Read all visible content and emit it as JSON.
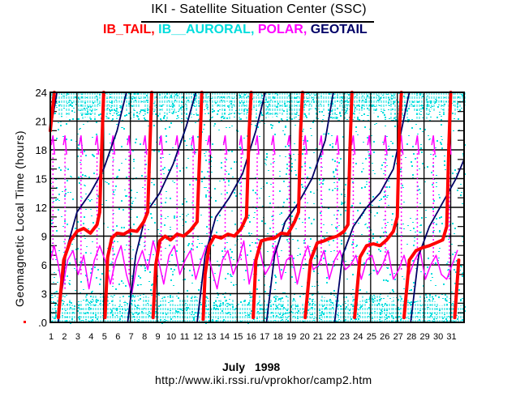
{
  "header": {
    "title": "IKI - Satellite Situation Center (SSC)"
  },
  "footer": {
    "month": "July",
    "year": "1998",
    "url": "http://www.iki.rssi.ru/vprokhor/camp2.htm"
  },
  "chart_data": {
    "type": "line",
    "title": "IKI - Satellite Situation Center (SSC)",
    "xlabel": "July 1998",
    "ylabel": "Geomagnetic Local Time (hours)",
    "xlim": [
      1,
      32
    ],
    "ylim": [
      0,
      24
    ],
    "grid": true,
    "legend_placement": "top",
    "x_ticks": [
      "1",
      "2",
      "3",
      "4",
      "5",
      "6",
      "7",
      "8",
      "9",
      "10",
      "11",
      "12",
      "13",
      "14",
      "15",
      "16",
      "17",
      "18",
      "19",
      "20",
      "21",
      "22",
      "23",
      "24",
      "25",
      "26",
      "27",
      "28",
      "29",
      "30",
      "31"
    ],
    "y_ticks": [
      ".0",
      "3",
      "6",
      "9",
      "12",
      "15",
      "18",
      "21",
      "24"
    ],
    "y_tick_values": [
      0,
      3,
      6,
      9,
      12,
      15,
      18,
      21,
      24
    ],
    "legend": [
      {
        "name": "IB_TAIL",
        "color": "#ff0000"
      },
      {
        "name": "IB__AURORAL",
        "color": "#00dddd"
      },
      {
        "name": "POLAR",
        "color": "#ff00ff"
      },
      {
        "name": "GEOTAIL",
        "color": "#000066"
      }
    ],
    "series": [
      {
        "name": "IB_TAIL",
        "color": "#ff0000",
        "description": "Sawtooth-like GMLT track; wraps 24->0 roughly every 3.75 days, plateau near 6-9 h with oscillation, then steep rise to 24",
        "x": [
          1.0,
          1.15,
          1.3,
          1.6,
          2.0,
          2.5,
          3.0,
          3.5,
          4.0,
          4.5,
          4.7,
          4.85,
          5.0,
          5.1,
          5.3,
          5.6,
          6.0,
          6.5,
          7.0,
          7.5,
          8.0,
          8.3,
          8.5,
          8.6,
          8.7,
          8.9,
          9.2,
          9.6,
          10.0,
          10.5,
          11.0,
          11.5,
          12.0,
          12.2,
          12.35,
          12.45,
          12.6,
          12.9,
          13.3,
          13.8,
          14.3,
          14.8,
          15.3,
          15.7,
          15.9,
          16.05,
          16.2,
          16.4,
          16.8,
          17.3,
          17.8,
          18.3,
          18.8,
          19.3,
          19.6,
          19.75,
          19.9,
          20.1,
          20.5,
          21.0,
          21.5,
          22.0,
          22.5,
          23.0,
          23.3,
          23.45,
          23.6,
          23.8,
          24.2,
          24.7,
          25.2,
          25.7,
          26.2,
          26.7,
          27.0,
          27.15,
          27.3,
          27.5,
          27.9,
          28.4,
          28.9,
          29.4,
          29.9,
          30.4,
          30.7,
          30.85,
          31.0,
          31.3,
          31.6
        ],
        "y": [
          20,
          22,
          24,
          0.5,
          6.5,
          8.5,
          9.5,
          9.8,
          9.3,
          10.2,
          11.5,
          18,
          24,
          0.5,
          6.8,
          8.8,
          9.3,
          9.2,
          9.6,
          9.5,
          10.5,
          11.5,
          20,
          24,
          0.5,
          6.0,
          8.5,
          9.0,
          8.6,
          9.2,
          9.0,
          9.6,
          10.5,
          18,
          24,
          0.3,
          5.0,
          8.0,
          9.0,
          8.8,
          9.2,
          9.0,
          9.8,
          11.0,
          20,
          24,
          0.5,
          6.5,
          8.5,
          8.7,
          8.8,
          9.3,
          9.2,
          10.5,
          11.5,
          20,
          24,
          0.5,
          6.5,
          8.3,
          8.5,
          8.8,
          9.0,
          9.5,
          10.2,
          18,
          24,
          0.5,
          6.8,
          8.0,
          8.2,
          8.0,
          8.6,
          9.5,
          11.0,
          20,
          24,
          0.5,
          6.5,
          7.5,
          7.8,
          8.0,
          8.3,
          8.6,
          10.0,
          18,
          24,
          0.5,
          6.5
        ]
      },
      {
        "name": "GEOTAIL",
        "color": "#000066",
        "description": "GMLT rises steadily 0->24 about every 5.2 days",
        "x": [
          1.0,
          1.5,
          1.6,
          2.2,
          3.0,
          4.0,
          5.0,
          6.0,
          6.7,
          6.8,
          7.4,
          8.2,
          9.2,
          10.2,
          11.2,
          11.9,
          12.0,
          12.6,
          13.4,
          14.4,
          15.4,
          16.4,
          17.1,
          17.2,
          17.8,
          18.6,
          19.6,
          20.6,
          21.6,
          22.2,
          22.3,
          22.9,
          23.7,
          24.7,
          25.7,
          26.7,
          27.9,
          28.0,
          28.6,
          29.4,
          30.4,
          31.4,
          32.0
        ],
        "y": [
          20,
          24,
          0,
          7.5,
          11.5,
          13.5,
          16.0,
          20.0,
          24,
          0,
          7.0,
          11.5,
          13.5,
          16.5,
          20.5,
          24,
          0,
          7.0,
          11.0,
          13.0,
          15.5,
          20.0,
          24,
          0,
          7.0,
          10.5,
          12.5,
          15.0,
          19.0,
          24,
          0,
          7.0,
          10.0,
          12.0,
          13.5,
          16.0,
          24,
          0,
          7.0,
          10.0,
          12.5,
          15.0,
          17.0
        ]
      },
      {
        "name": "POLAR",
        "color": "#ff00ff",
        "description": "Dense oscillating track mostly between ~3 and ~20 h with daily dotted vertical sweeps",
        "x": [
          1.0,
          1.3,
          1.6,
          1.9,
          2.3,
          2.7,
          3.1,
          3.5,
          3.9,
          4.3,
          4.7,
          5.1,
          5.5,
          5.9,
          6.3,
          6.7,
          7.1,
          7.5,
          7.9,
          8.3,
          8.7,
          9.1,
          9.5,
          9.9,
          10.3,
          10.7,
          11.1,
          11.5,
          11.9,
          12.3,
          12.7,
          13.1,
          13.5,
          13.9,
          14.3,
          14.7,
          15.1,
          15.5,
          15.9,
          16.3,
          16.7,
          17.1,
          17.5,
          17.9,
          18.3,
          18.7,
          19.1,
          19.5,
          19.9,
          20.3,
          20.7,
          21.1,
          21.5,
          21.9,
          22.3,
          22.7,
          23.1,
          23.5,
          23.9,
          24.3,
          24.7,
          25.1,
          25.5,
          25.9,
          26.3,
          26.7,
          27.1,
          27.5,
          27.9,
          28.3,
          28.7,
          29.1,
          29.5,
          29.9,
          30.3,
          30.7,
          31.1,
          31.5
        ],
        "y": [
          6.5,
          8.0,
          6.0,
          3.5,
          6.5,
          7.5,
          5.0,
          7.0,
          3.5,
          6.5,
          8.0,
          6.5,
          4.0,
          6.5,
          8.0,
          5.0,
          3.0,
          6.0,
          7.5,
          5.5,
          8.5,
          6.5,
          4.0,
          7.0,
          8.0,
          5.0,
          6.5,
          7.5,
          4.5,
          6.5,
          8.0,
          5.5,
          3.5,
          6.5,
          7.5,
          5.0,
          6.5,
          8.5,
          4.0,
          6.5,
          7.5,
          5.0,
          6.0,
          8.0,
          4.5,
          6.5,
          7.0,
          4.0,
          6.5,
          8.0,
          5.5,
          6.0,
          7.5,
          4.5,
          6.5,
          7.5,
          5.5,
          6.0,
          7.0,
          4.5,
          6.5,
          7.0,
          5.0,
          6.0,
          7.5,
          4.5,
          5.5,
          7.0,
          5.0,
          6.5,
          7.5,
          4.5,
          6.0,
          7.0,
          5.0,
          4.5,
          6.0,
          7.5
        ]
      },
      {
        "name": "IB__AURORAL",
        "color": "#00dddd",
        "description": "Scattered cyan dots filling nearly the whole 0-24 h range every day (dense near 0-3 h and 21-24 h)",
        "x": [],
        "y": []
      }
    ]
  }
}
